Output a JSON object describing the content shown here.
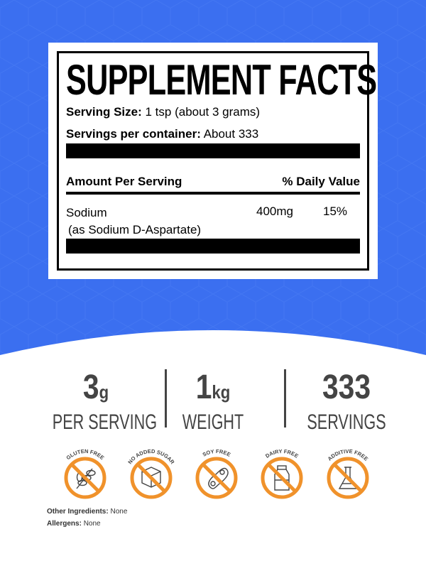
{
  "colors": {
    "background_blue": "#3b6ff0",
    "accent_orange": "#f0922b",
    "text_gray": "#444444"
  },
  "facts": {
    "title": "SUPPLEMENT FACTS",
    "serving_size_label": "Serving Size:",
    "serving_size_value": "1 tsp (about 3 grams)",
    "servings_label": "Servings per container:",
    "servings_value": "About 333",
    "amount_header": "Amount Per Serving",
    "daily_value_header": "% Daily Value",
    "ingredient": {
      "name": "Sodium",
      "detail": "(as Sodium D-Aspartate)",
      "amount": "400mg",
      "daily_value": "15%"
    }
  },
  "stats": [
    {
      "value": "3",
      "unit": "g",
      "label": "PER SERVING"
    },
    {
      "value": "1",
      "unit": "kg",
      "label": "WEIGHT"
    },
    {
      "value": "333",
      "unit": "",
      "label": "SERVINGS"
    }
  ],
  "badges": [
    {
      "label": "GLUTEN FREE",
      "icon": "wheat-icon"
    },
    {
      "label": "NO ADDED SUGAR",
      "icon": "sugar-cube-icon"
    },
    {
      "label": "SOY FREE",
      "icon": "soybean-icon"
    },
    {
      "label": "DAIRY FREE",
      "icon": "milk-bottle-icon"
    },
    {
      "label": "ADDITIVE FREE",
      "icon": "flask-icon"
    }
  ],
  "other_ingredients": {
    "label": "Other Ingredients:",
    "value": "None"
  },
  "allergens": {
    "label": "Allergens:",
    "value": "None"
  }
}
